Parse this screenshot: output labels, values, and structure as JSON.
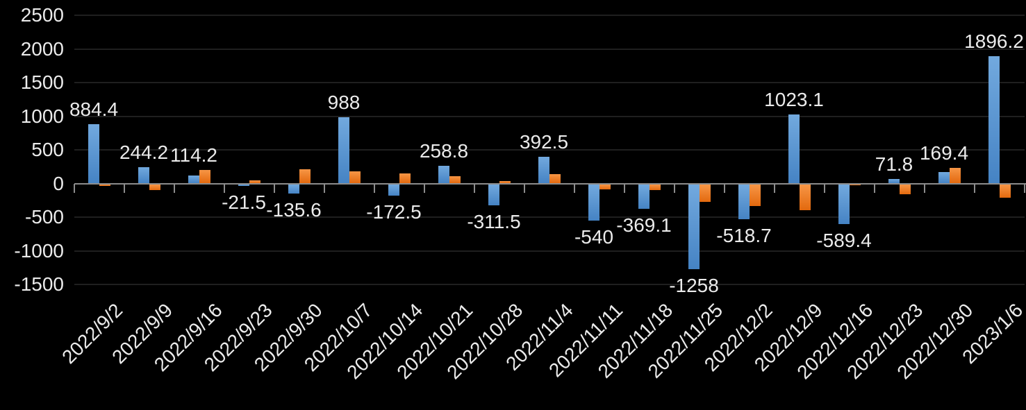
{
  "chart_data": {
    "type": "bar",
    "title": "",
    "xlabel": "",
    "ylabel": "",
    "legend": "none",
    "grid": true,
    "background_color": "#000000",
    "text_color": "#EBEBEB",
    "gridline_color": "#1F1F1F",
    "axis_color": "#8C8C8C",
    "ylim": [
      -1500,
      2500
    ],
    "y_ticks": [
      "2500",
      "2000",
      "1500",
      "1000",
      "500",
      "0",
      "-500",
      "-1000",
      "-1500"
    ],
    "y_tick_values": [
      2500,
      2000,
      1500,
      1000,
      500,
      0,
      -500,
      -1000,
      -1500
    ],
    "categories": [
      "2022/9/2",
      "2022/9/9",
      "2022/9/16",
      "2022/9/23",
      "2022/9/30",
      "2022/10/7",
      "2022/10/14",
      "2022/10/21",
      "2022/10/28",
      "2022/11/4",
      "2022/11/11",
      "2022/11/18",
      "2022/11/25",
      "2022/12/2",
      "2022/12/9",
      "2022/12/16",
      "2022/12/23",
      "2022/12/30",
      "2023/1/6"
    ],
    "series": [
      {
        "color_top": "#72A9DE",
        "color_bottom": "#4583C4",
        "values": [
          884.4,
          244.2,
          114.2,
          -21.5,
          -135.6,
          988,
          -172.5,
          258.8,
          -311.5,
          392.5,
          -540,
          -369.1,
          -1258,
          -518.7,
          1023.1,
          -589.4,
          71.8,
          169.4,
          1896.2
        ],
        "data_labels": [
          "884.4",
          "244.2",
          "114.2",
          "-21.5",
          "-135.6",
          "988",
          "-172.5",
          "258.8",
          "-311.5",
          "392.5",
          "-540",
          "-369.1",
          "-1258",
          "-518.7",
          "1023.1",
          "-589.4",
          "71.8",
          "169.4",
          "1896.2"
        ],
        "labels_visible": true
      },
      {
        "color_top": "#F79646",
        "color_bottom": "#E3690E",
        "values": [
          -25,
          -85,
          205,
          45,
          215,
          180,
          145,
          105,
          35,
          140,
          -80,
          -85,
          -260,
          -320,
          -385,
          -15,
          -145,
          230,
          -205
        ],
        "labels_visible": false
      }
    ]
  }
}
